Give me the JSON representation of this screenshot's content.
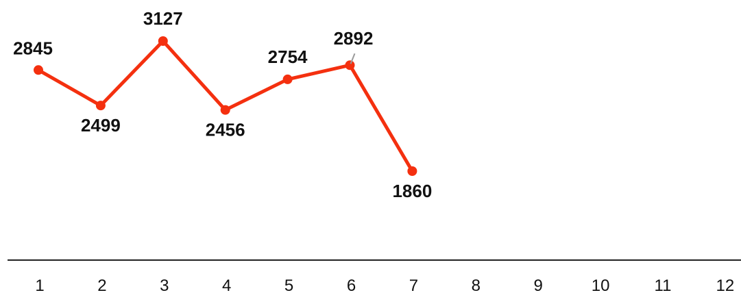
{
  "chart_data": {
    "type": "line",
    "categories": [
      "1",
      "2",
      "3",
      "4",
      "5",
      "6",
      "7",
      "8",
      "9",
      "10",
      "11",
      "12"
    ],
    "series": [
      {
        "values": [
          2845,
          2499,
          3127,
          2456,
          2754,
          2892,
          1860,
          null,
          null,
          null,
          null,
          null
        ]
      }
    ],
    "ylim": [
      1000,
      3350
    ],
    "grid": false,
    "legend": "none",
    "colors": {
      "line": "#f4300f",
      "axis": "#222222",
      "leader": "#9a9a9a",
      "text": "#111111"
    }
  }
}
